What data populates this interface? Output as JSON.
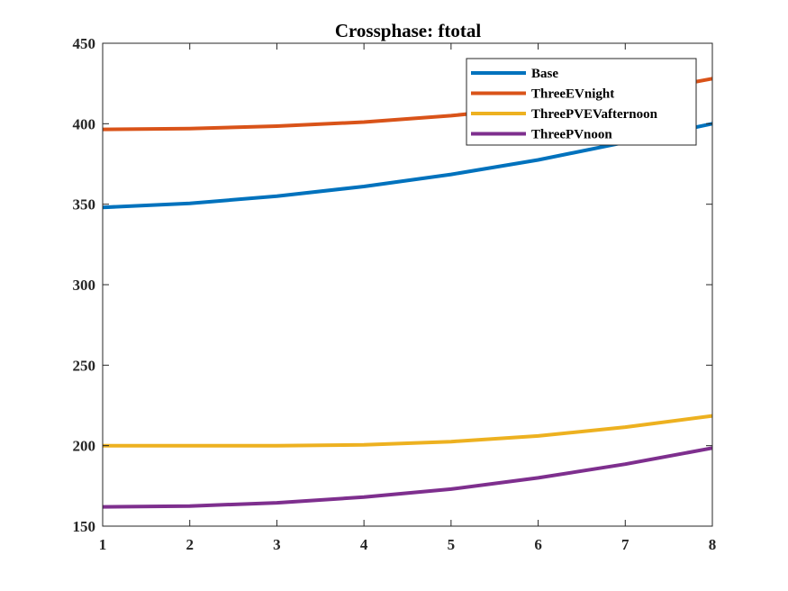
{
  "chart_data": {
    "type": "line",
    "title": "Crossphase: ftotal",
    "xlabel": "",
    "ylabel": "",
    "x": [
      1,
      2,
      3,
      4,
      5,
      6,
      7,
      8
    ],
    "xlim": [
      1,
      8
    ],
    "ylim": [
      150,
      450
    ],
    "xticks": [
      "1",
      "2",
      "3",
      "4",
      "5",
      "6",
      "7",
      "8"
    ],
    "yticks": [
      "150",
      "200",
      "250",
      "300",
      "350",
      "400",
      "450"
    ],
    "grid": false,
    "legend_position": "top-right",
    "series": [
      {
        "name": "Base",
        "color": "#0072BD",
        "values": [
          348,
          350.5,
          355,
          361,
          368.5,
          377.5,
          388.5,
          400
        ]
      },
      {
        "name": "ThreeEVnight",
        "color": "#D95319",
        "values": [
          396.5,
          397,
          398.5,
          401,
          405,
          410.5,
          418,
          428
        ]
      },
      {
        "name": "ThreePVEVafternoon",
        "color": "#EDB120",
        "values": [
          200,
          200,
          200,
          200.5,
          202.5,
          206,
          211.5,
          218.5
        ]
      },
      {
        "name": "ThreePVnoon",
        "color": "#7E2F8E",
        "values": [
          162,
          162.5,
          164.5,
          168,
          173,
          180,
          188.5,
          198.5
        ]
      }
    ]
  }
}
